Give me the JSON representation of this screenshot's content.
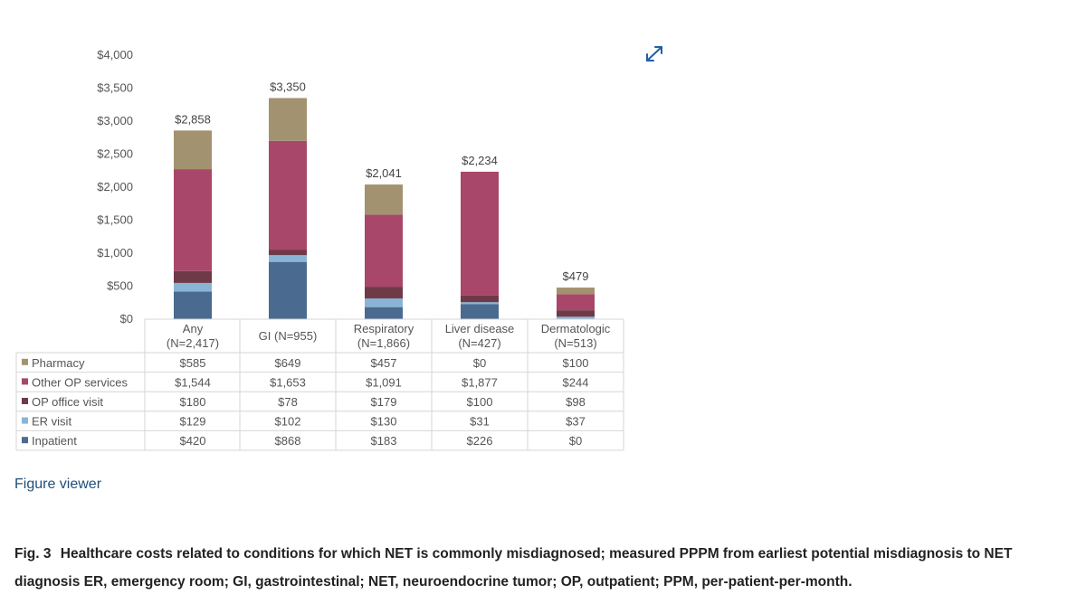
{
  "chart_data": {
    "type": "bar",
    "stacked": true,
    "categories": [
      [
        "Any",
        "(N=2,417)"
      ],
      [
        "GI (N=955)"
      ],
      [
        "Respiratory",
        "(N=1,866)"
      ],
      [
        "Liver disease",
        "(N=427)"
      ],
      [
        "Dermatologic",
        "(N=513)"
      ]
    ],
    "series": [
      {
        "name": "Inpatient",
        "values": [
          420,
          868,
          183,
          226,
          0
        ],
        "labels": [
          "$420",
          "$868",
          "$183",
          "$226",
          "$0"
        ],
        "color": "#4a6b8f"
      },
      {
        "name": "ER visit",
        "values": [
          129,
          102,
          130,
          31,
          37
        ],
        "labels": [
          "$129",
          "$102",
          "$130",
          "$31",
          "$37"
        ],
        "color": "#8ab4d6"
      },
      {
        "name": "OP office visit",
        "values": [
          180,
          78,
          179,
          100,
          98
        ],
        "labels": [
          "$180",
          "$78",
          "$179",
          "$100",
          "$98"
        ],
        "color": "#6e3a48"
      },
      {
        "name": "Other OP services",
        "values": [
          1544,
          1653,
          1091,
          1877,
          244
        ],
        "labels": [
          "$1,544",
          "$1,653",
          "$1,091",
          "$1,877",
          "$244"
        ],
        "color": "#a8476a"
      },
      {
        "name": "Pharmacy",
        "values": [
          585,
          649,
          457,
          0,
          100
        ],
        "labels": [
          "$585",
          "$649",
          "$457",
          "$0",
          "$100"
        ],
        "color": "#a39270"
      }
    ],
    "totals": [
      "$2,858",
      "$3,350",
      "$2,041",
      "$2,234",
      "$479"
    ],
    "ylim": [
      0,
      4000
    ],
    "yticks": [
      "$0",
      "$500",
      "$1,000",
      "$1,500",
      "$2,000",
      "$2,500",
      "$3,000",
      "$3,500",
      "$4,000"
    ],
    "grid": false,
    "legend": "data table below chart"
  },
  "links": {
    "figure_viewer": "Figure viewer"
  },
  "caption": {
    "label": "Fig. 3",
    "text": "Healthcare costs related to conditions for which NET is commonly misdiagnosed; measured PPPM from earliest potential misdiagnosis to NET diagnosis ER, emergency room; GI, gastrointestinal; NET, neuroendocrine tumor; OP, outpatient; PPM, per-patient-per-month."
  }
}
